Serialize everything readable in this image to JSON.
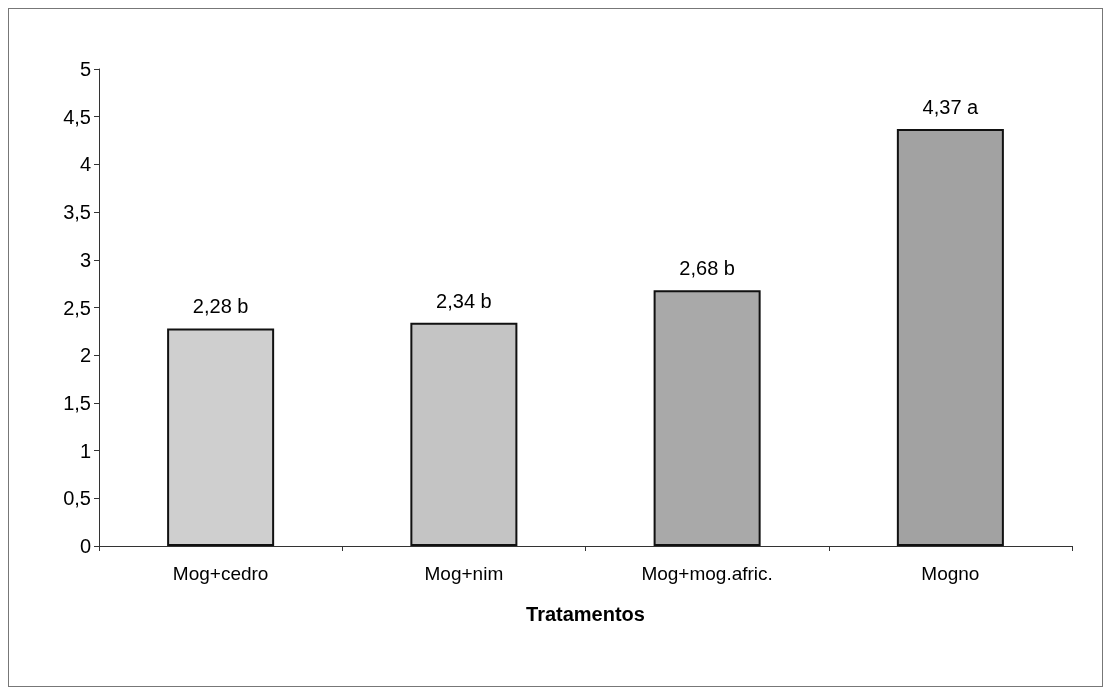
{
  "chart_data": {
    "type": "bar",
    "xlabel": "Tratamentos",
    "categories": [
      "Mog+cedro",
      "Mog+nim",
      "Mog+mog.afric.",
      "Mogno"
    ],
    "values": [
      2.28,
      2.34,
      2.68,
      4.37
    ],
    "value_labels": [
      "2,28 b",
      "2,34 b",
      "2,68 b",
      "4,37 a"
    ],
    "colors": [
      "#cfcfcf",
      "#c4c4c4",
      "#a9a9a9",
      "#a2a2a2"
    ],
    "ylim": [
      0,
      5
    ],
    "yticks": [
      0,
      {
        "value": 0.5,
        "label": "0,5"
      },
      1,
      {
        "value": 1.5,
        "label": "1,5"
      },
      2,
      {
        "value": 2.5,
        "label": "2,5"
      },
      3,
      {
        "value": 3.5,
        "label": "3,5"
      },
      4,
      {
        "value": 4.5,
        "label": "4,5"
      },
      5
    ],
    "grid": false
  }
}
